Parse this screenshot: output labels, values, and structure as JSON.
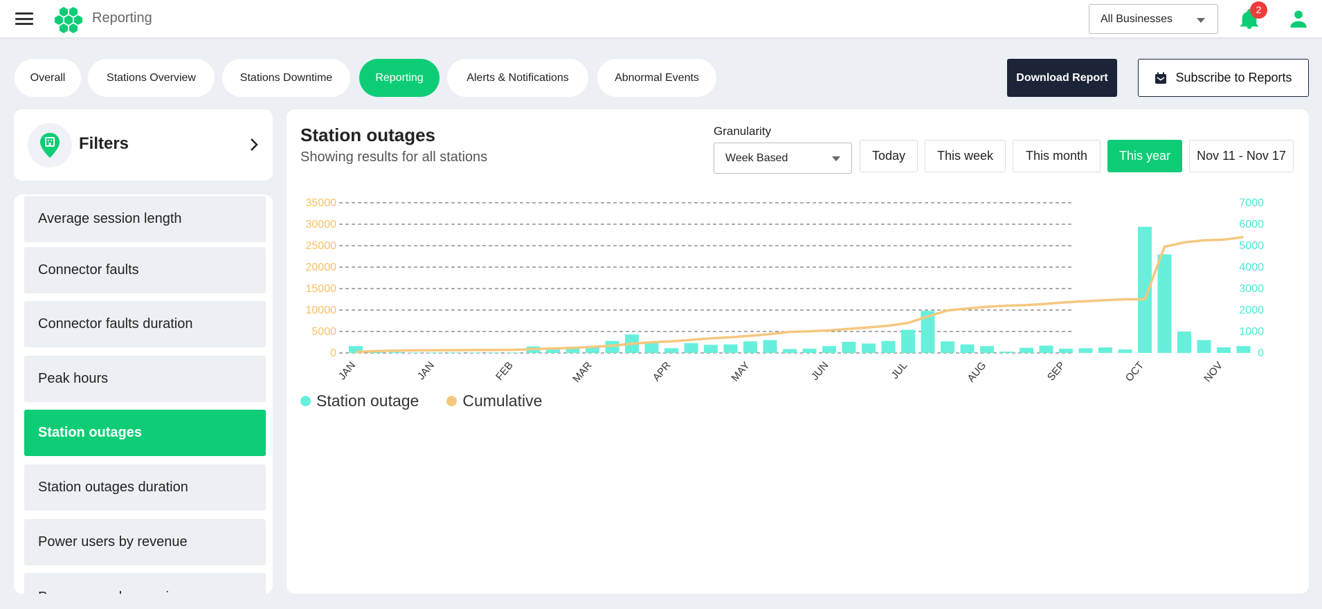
{
  "app": {
    "title": "Reporting"
  },
  "header": {
    "business_select": "All Businesses",
    "notification_count": "2"
  },
  "tabs": [
    {
      "label": "Overall"
    },
    {
      "label": "Stations Overview"
    },
    {
      "label": "Stations Downtime"
    },
    {
      "label": "Reporting"
    },
    {
      "label": "Alerts & Notifications"
    },
    {
      "label": "Abnormal Events"
    }
  ],
  "actions": {
    "download": "Download Report",
    "subscribe": "Subscribe to Reports"
  },
  "filters": {
    "title": "Filters"
  },
  "reports": [
    {
      "label": "Average session length"
    },
    {
      "label": "Connector faults"
    },
    {
      "label": "Connector faults duration"
    },
    {
      "label": "Peak hours"
    },
    {
      "label": "Station outages"
    },
    {
      "label": "Station outages duration"
    },
    {
      "label": "Power users by revenue"
    },
    {
      "label": "Power users by sessions"
    }
  ],
  "report_header": {
    "title": "Station outages",
    "subtitle": "Showing results for all stations",
    "granularity_label": "Granularity",
    "granularity_value": "Week Based"
  },
  "ranges": [
    {
      "label": "Today"
    },
    {
      "label": "This week"
    },
    {
      "label": "This month"
    },
    {
      "label": "This year"
    },
    {
      "label": "Nov 11 - Nov 17"
    }
  ],
  "colors": {
    "accent": "#0ccd75",
    "dark": "#1c2437",
    "bar": "#66f0dc",
    "line": "#f5c77e",
    "left_axis": "#f7c064",
    "right_axis": "#4de8d5",
    "badge": "#f03c3c"
  },
  "chart_data": {
    "type": "bar",
    "x_ticks": [
      "JAN",
      "JAN",
      "FEB",
      "MAR",
      "APR",
      "MAY",
      "JUN",
      "JUL",
      "AUG",
      "SEP",
      "OCT",
      "NOV"
    ],
    "y_left_ticks": [
      "0",
      "5000",
      "10000",
      "15000",
      "20000",
      "25000",
      "30000",
      "35000"
    ],
    "y_right_ticks": [
      "0",
      "1000",
      "2000",
      "3000",
      "4000",
      "5000",
      "6000",
      "7000"
    ],
    "ylim_left": [
      0,
      35000
    ],
    "ylim_right": [
      0,
      7000
    ],
    "grid": "dashed horizontal",
    "legend_position": "bottom-left",
    "series": [
      {
        "name": "Station outage",
        "kind": "bar",
        "axis": "left",
        "values": [
          1600,
          300,
          200,
          100,
          100,
          100,
          100,
          100,
          100,
          1500,
          1000,
          1100,
          1300,
          2800,
          4300,
          2600,
          1100,
          2300,
          1900,
          2000,
          2700,
          3000,
          900,
          1000,
          1600,
          2600,
          2200,
          2800,
          5400,
          9800,
          2700,
          2000,
          1600,
          300,
          1200,
          1700,
          1000,
          1100,
          1300,
          800,
          29400,
          23000,
          5000,
          3000,
          1300,
          1600
        ]
      },
      {
        "name": "Cumulative",
        "kind": "line",
        "axis": "right",
        "values": [
          40,
          90,
          110,
          120,
          125,
          130,
          135,
          140,
          145,
          180,
          210,
          240,
          280,
          340,
          430,
          500,
          540,
          610,
          680,
          730,
          800,
          880,
          980,
          1010,
          1050,
          1120,
          1190,
          1270,
          1400,
          1700,
          1980,
          2070,
          2150,
          2200,
          2230,
          2290,
          2360,
          2410,
          2460,
          2500,
          2500,
          4950,
          5150,
          5250,
          5280,
          5400
        ]
      }
    ]
  }
}
